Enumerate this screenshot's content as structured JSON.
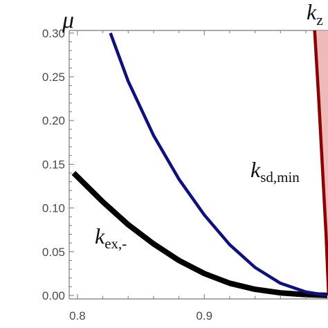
{
  "chart_data": {
    "type": "line",
    "xlabel": "",
    "ylabel": "μ",
    "top_label": {
      "base": "k",
      "sub": "z"
    },
    "xlim": [
      0.7935,
      0.9975
    ],
    "ylim": [
      -0.004,
      0.303
    ],
    "x_ticks": [
      0.8,
      0.9
    ],
    "x_tick_labels": [
      "0.8",
      "0.9"
    ],
    "y_ticks": [
      0.0,
      0.05,
      0.1,
      0.15,
      0.2,
      0.25,
      0.3
    ],
    "y_tick_labels": [
      "0.00",
      "0.05",
      "0.10",
      "0.15",
      "0.20",
      "0.25",
      "0.30"
    ],
    "grid": false,
    "series": [
      {
        "label_base": "k",
        "label_sub": "ex,-",
        "color": "#000000",
        "x": [
          0.797,
          0.82,
          0.84,
          0.86,
          0.88,
          0.9,
          0.92,
          0.94,
          0.96,
          0.98,
          0.997
        ],
        "y": [
          0.14,
          0.107,
          0.081,
          0.059,
          0.04,
          0.025,
          0.014,
          0.007,
          0.003,
          0.001,
          0.0
        ]
      },
      {
        "label_base": "",
        "label_sub": "",
        "color": "#0f1080",
        "x": [
          0.826,
          0.84,
          0.86,
          0.88,
          0.9,
          0.92,
          0.94,
          0.96,
          0.98,
          0.997
        ],
        "y": [
          0.3,
          0.245,
          0.183,
          0.133,
          0.092,
          0.058,
          0.032,
          0.014,
          0.004,
          0.0
        ]
      },
      {
        "label_base": "k",
        "label_sub": "sd,min",
        "color": "#8b0000",
        "fill": "#e8a7a7",
        "x": [
          0.987,
          0.99,
          0.993,
          0.996,
          0.998
        ],
        "y": [
          0.303,
          0.23,
          0.15,
          0.07,
          0.0
        ]
      }
    ]
  }
}
